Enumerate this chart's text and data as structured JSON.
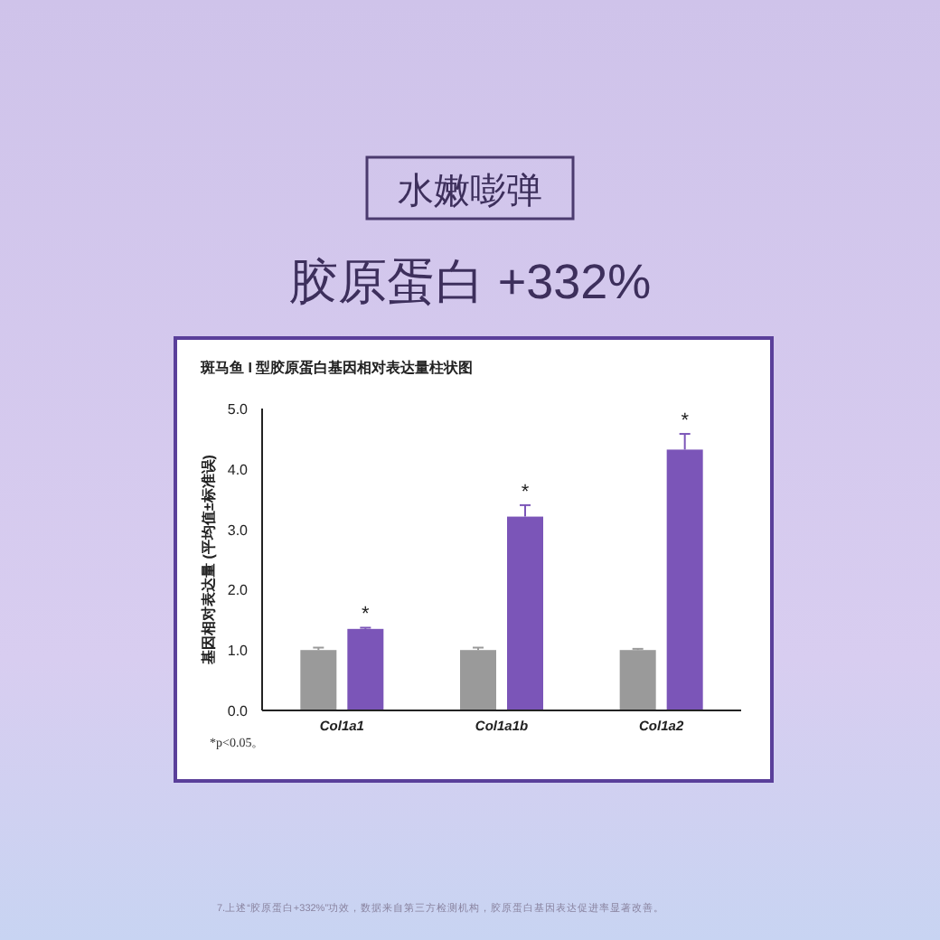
{
  "chart_data": {
    "type": "bar",
    "title": "斑马鱼 I 型胶原蛋白基因相对表达量柱状图",
    "ylabel": "基因相对表达量 (平均值±标准误)",
    "categories": [
      "Col1a1",
      "Col1a1b",
      "Col1a2"
    ],
    "series": [
      {
        "color": "#9a9a9a",
        "values": [
          1.0,
          1.0,
          1.0
        ],
        "errors": [
          0.04,
          0.04,
          0.02
        ]
      },
      {
        "color": "#7b55b8",
        "values": [
          1.35,
          3.21,
          4.32
        ],
        "errors": [
          0.02,
          0.19,
          0.26
        ]
      }
    ],
    "ylim": [
      0,
      5
    ],
    "yticks": [
      {
        "value": 0,
        "label": "0.0"
      },
      {
        "value": 1,
        "label": "1.0"
      },
      {
        "value": 2,
        "label": "2.0"
      },
      {
        "value": 3,
        "label": "3.0"
      },
      {
        "value": 4,
        "label": "4.0"
      },
      {
        "value": 5,
        "label": "5.0"
      }
    ],
    "grid": false,
    "annotations": [
      "*",
      "*",
      "*",
      "水嫩嘭弹",
      "胶原蛋白 +332%",
      "*p<0.05。",
      "7.上述“胶原蛋白+332%”功效，数据来自第三方检测机构，胶原蛋白基因表达促进率显著改善。"
    ]
  }
}
